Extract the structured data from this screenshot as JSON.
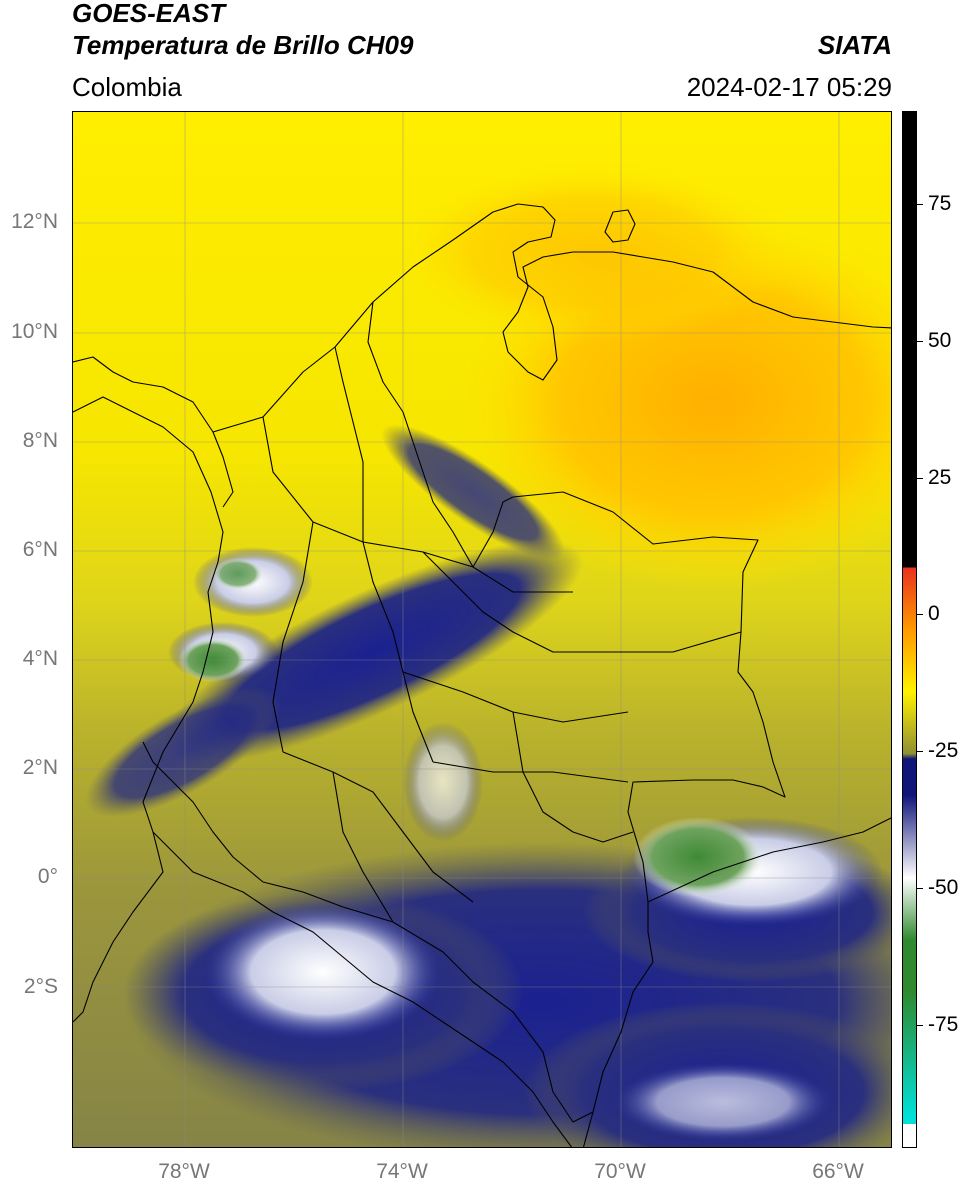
{
  "header": {
    "title_line1": "GOES-EAST",
    "title_line2": "Temperatura de Brillo CH09",
    "region": "Colombia",
    "org": "SIATA",
    "timestamp": "2024-02-17 05:29"
  },
  "axes": {
    "lat_ticks": [
      "12°N",
      "10°N",
      "8°N",
      "6°N",
      "4°N",
      "2°N",
      "0°",
      "2°S"
    ],
    "lon_ticks": [
      "78°W",
      "74°W",
      "70°W",
      "66°W"
    ]
  },
  "colorbar": {
    "ticks": [
      "75",
      "50",
      "25",
      "0",
      "-25",
      "-50",
      "-75"
    ],
    "colors": {
      "black": "#000000",
      "red": "#e8321e",
      "orange": "#ff9900",
      "yellow": "#fff200",
      "olive": "#8f8f33",
      "navy": "#10157a",
      "white": "#ffffff",
      "green": "#2f8a2f",
      "cyan": "#00e0d8"
    }
  },
  "map_colors": {
    "yellow": "#ffee00",
    "gold": "#ffd200",
    "orange": "#ffb800",
    "olive_light": "#c8c22a",
    "olive": "#a7a13a",
    "olive_dark": "#7f7d44",
    "navy": "#1a2190",
    "white_cloud": "#e8ecf4",
    "green_cloud": "#4a9040"
  }
}
